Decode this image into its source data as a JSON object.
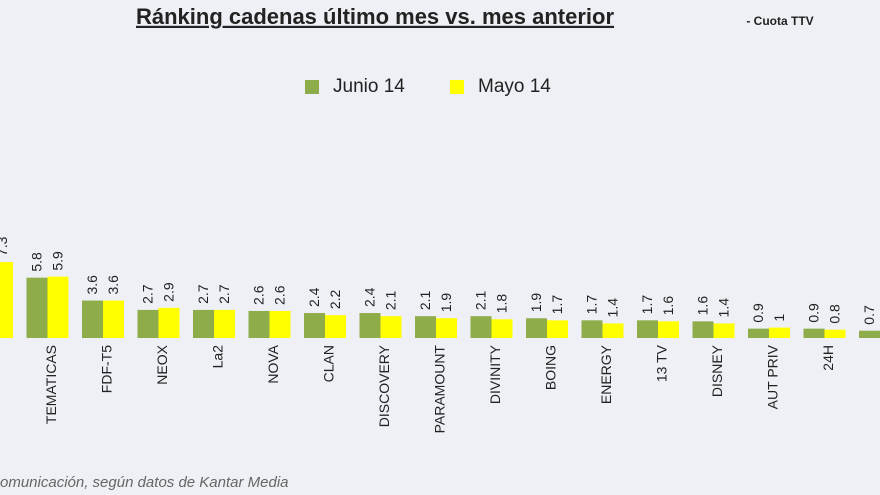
{
  "chart_data": {
    "type": "bar",
    "title": "Ránking cadenas último mes vs. mes anterior",
    "subtitle": "- Cuota TTV",
    "source": "omunicación, según datos de Kantar Media",
    "categories": [
      null,
      "TEMATICAS",
      "FDF-T5",
      "NEOX",
      "La2",
      "NOVA",
      "CLAN",
      "DISCOVERY",
      "PARAMOUNT",
      "DIVINITY",
      "BOING",
      "ENERGY",
      "13 TV",
      "DISNEY",
      "AUT PRIV",
      "24H",
      null
    ],
    "series": [
      {
        "name": "Junio 14",
        "color": "#8fac4a",
        "values": [
          null,
          5.8,
          3.6,
          2.7,
          2.7,
          2.6,
          2.4,
          2.4,
          2.1,
          2.1,
          1.9,
          1.7,
          1.7,
          1.6,
          0.9,
          0.9,
          0.7
        ]
      },
      {
        "name": "Mayo 14",
        "color": "#ffff00",
        "values": [
          7.3,
          5.9,
          3.6,
          2.9,
          2.7,
          2.6,
          2.2,
          2.1,
          1.9,
          1.8,
          1.7,
          1.4,
          1.6,
          1.4,
          1,
          0.8,
          null
        ]
      }
    ]
  }
}
